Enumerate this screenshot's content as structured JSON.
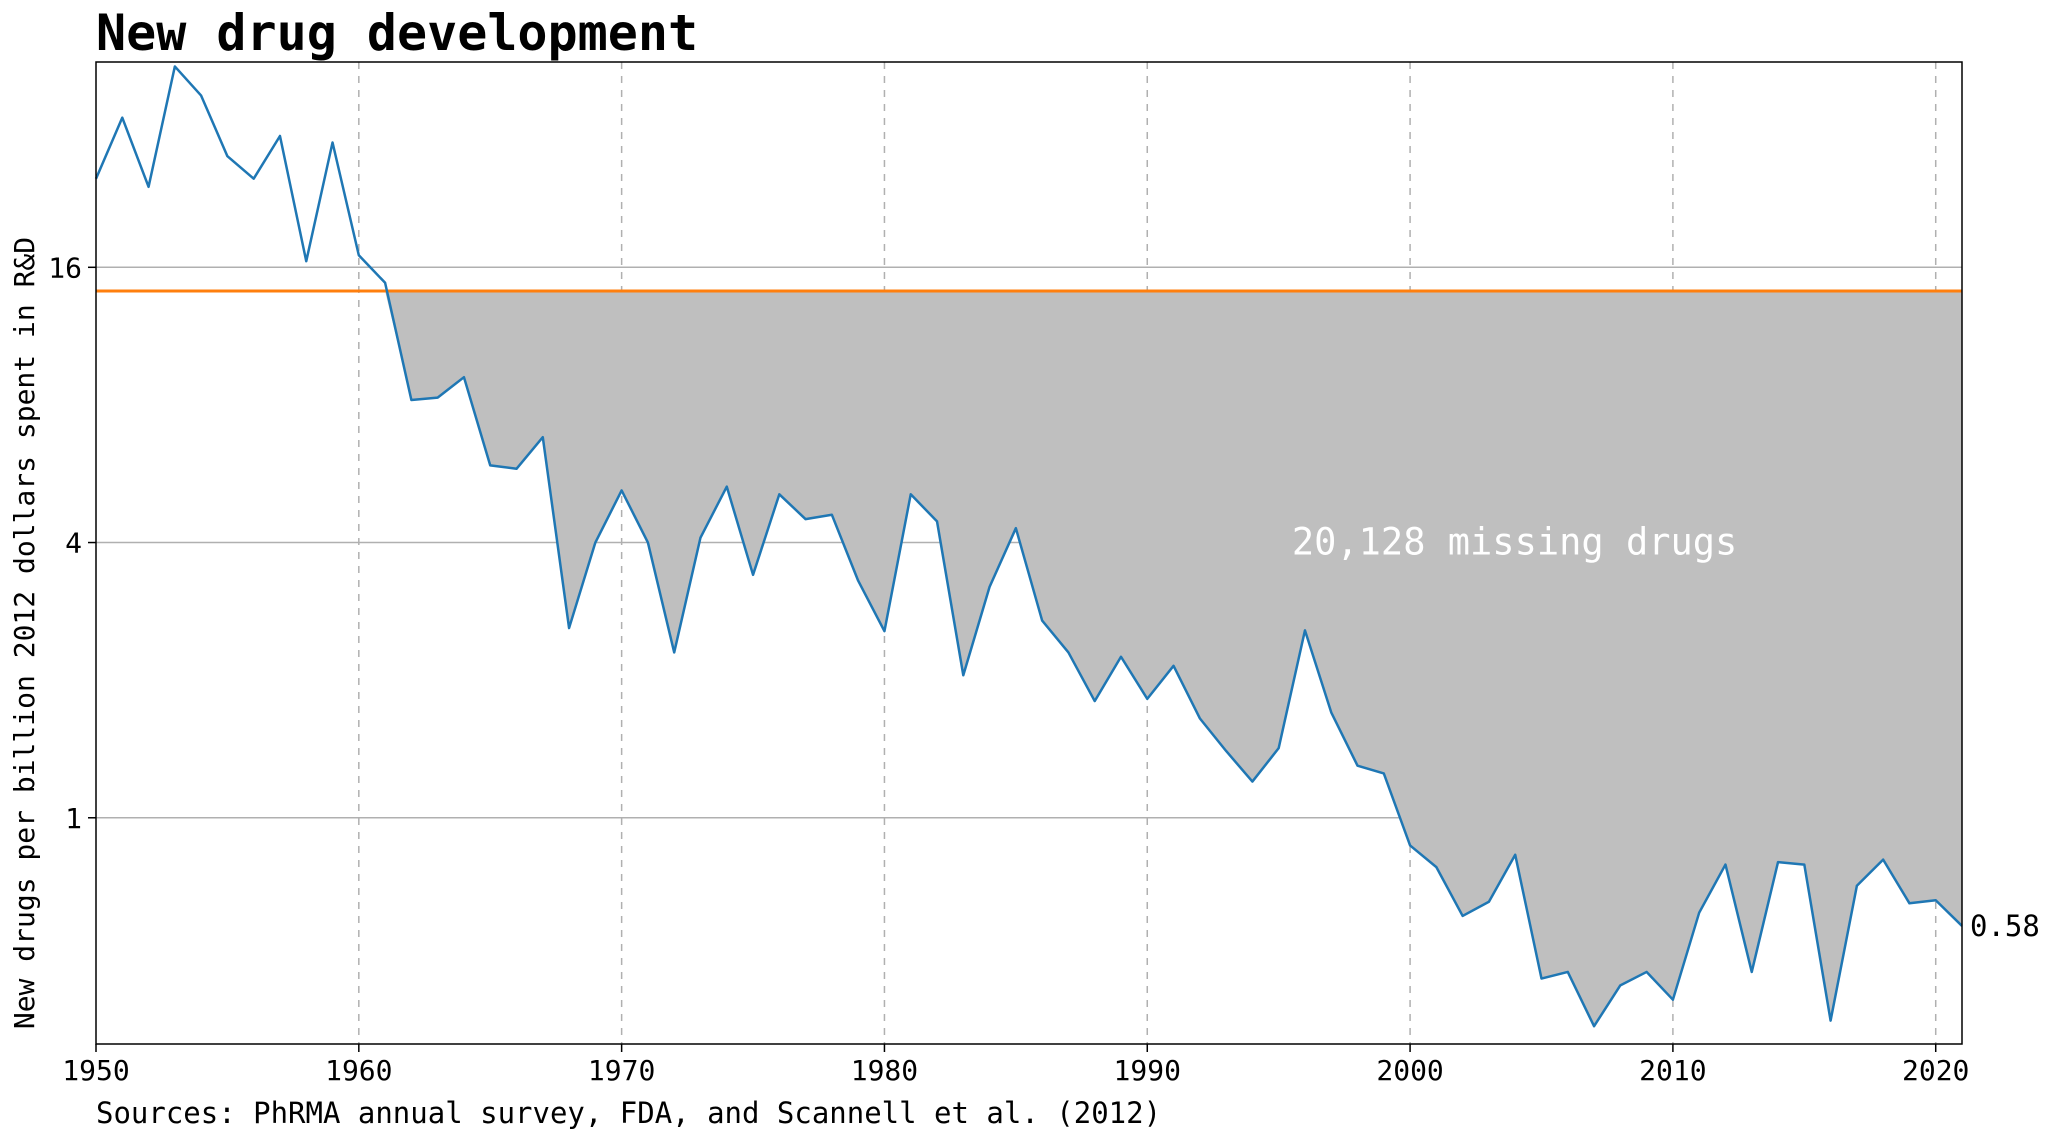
{
  "chart_data": {
    "type": "line",
    "title": "New drug development",
    "source": "Sources: PhRMA annual survey, FDA, and Scannell et al. (2012)",
    "ylabel": "New drugs per billion 2012 dollars spent in R&D",
    "xlabel": "",
    "y_scale": "log",
    "xlim": [
      1950,
      2021
    ],
    "ylim": [
      0.32,
      45
    ],
    "x_ticks": [
      1950,
      1960,
      1970,
      1980,
      1990,
      2000,
      2010,
      2020
    ],
    "x_tick_labels": [
      "1950",
      "1960",
      "1970",
      "1980",
      "1990",
      "2000",
      "2010",
      "2020"
    ],
    "y_ticks": [
      1,
      4,
      16
    ],
    "y_tick_labels": [
      "1",
      "4",
      "16"
    ],
    "x_grid": "dashed vertical",
    "y_grid": "solid horizontal",
    "series": [
      {
        "color": "#1f77b4",
        "x": [
          1950,
          1951,
          1952,
          1953,
          1954,
          1955,
          1956,
          1957,
          1958,
          1959,
          1960,
          1961,
          1962,
          1963,
          1964,
          1965,
          1966,
          1967,
          1968,
          1969,
          1970,
          1971,
          1972,
          1973,
          1974,
          1975,
          1976,
          1977,
          1978,
          1979,
          1980,
          1981,
          1982,
          1983,
          1984,
          1985,
          1986,
          1987,
          1988,
          1989,
          1990,
          1991,
          1992,
          1993,
          1994,
          1995,
          1996,
          1997,
          1998,
          1999,
          2000,
          2001,
          2002,
          2003,
          2004,
          2005,
          2006,
          2007,
          2008,
          2009,
          2010,
          2011,
          2012,
          2013,
          2014,
          2015,
          2016,
          2017,
          2018,
          2019,
          2020,
          2021
        ],
        "values": [
          25.0,
          34.0,
          24.0,
          44.0,
          38.0,
          28.0,
          25.0,
          31.0,
          16.5,
          30.0,
          17.0,
          14.8,
          8.2,
          8.3,
          9.2,
          5.9,
          5.8,
          6.8,
          2.6,
          4.0,
          5.2,
          4.0,
          2.3,
          4.1,
          5.3,
          3.4,
          5.1,
          4.5,
          4.6,
          3.3,
          2.56,
          5.1,
          4.45,
          2.05,
          3.2,
          4.3,
          2.7,
          2.3,
          1.8,
          2.25,
          1.82,
          2.15,
          1.65,
          1.4,
          1.2,
          1.42,
          2.57,
          1.7,
          1.3,
          1.25,
          0.87,
          0.78,
          0.61,
          0.655,
          0.83,
          0.445,
          0.46,
          0.35,
          0.43,
          0.46,
          0.4,
          0.62,
          0.79,
          0.46,
          0.8,
          0.79,
          0.36,
          0.71,
          0.81,
          0.65,
          0.66,
          0.58
        ]
      },
      {
        "name": "baseline",
        "color": "#ff7f0e",
        "constant": 14.2
      }
    ],
    "shading": {
      "color": "#bfbfbf",
      "between": "baseline and series",
      "from_x": 1961
    },
    "annotation": {
      "text": "20,128 missing drugs",
      "x": 1995.5,
      "y": 4.0,
      "color": "#ffffff"
    },
    "end_label": {
      "text": "0.58",
      "x": 2021,
      "y": 0.58
    }
  }
}
